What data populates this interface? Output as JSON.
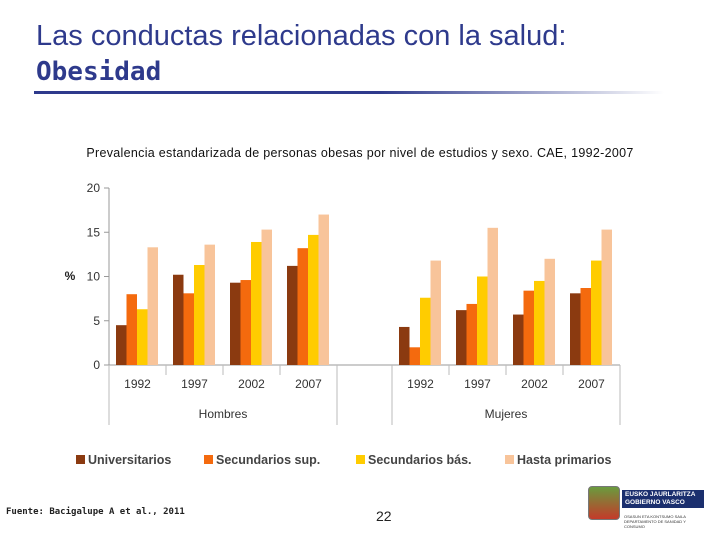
{
  "slide": {
    "title_line1": "Las conductas relacionadas con la salud:",
    "title_line2": "Obesidad",
    "source": "Fuente: Bacigalupe A et al., 2011",
    "page_number": "22",
    "logo": {
      "line1": "EUSKO JAURLARITZA",
      "line2": "GOBIERNO VASCO",
      "small1": "OSASUN ETA KONTSUMO SAILA",
      "small2": "DEPARTAMENTO DE SANIDAD Y CONSUMO"
    }
  },
  "colors": {
    "title": "#2e3a8c",
    "Universitarios": "#8b3a10",
    "Secundarios sup.": "#f46a0e",
    "Secundarios bás.": "#ffcc00",
    "Hasta primarios": "#f8c49a"
  },
  "chart_data": {
    "type": "bar",
    "title": "Prevalencia estandarizada de personas obesas por nivel de estudios y sexo. CAE, 1992-2007",
    "ylabel": "%",
    "ylim": [
      0,
      20
    ],
    "yticks": [
      0,
      5,
      10,
      15,
      20
    ],
    "grid": false,
    "legend_position": "bottom",
    "groups": [
      {
        "name": "Hombres",
        "categories": [
          "1992",
          "1997",
          "2002",
          "2007"
        ],
        "series": [
          {
            "name": "Universitarios",
            "values": [
              4.5,
              10.2,
              9.3,
              11.2
            ]
          },
          {
            "name": "Secundarios sup.",
            "values": [
              8.0,
              8.1,
              9.6,
              13.2
            ]
          },
          {
            "name": "Secundarios bás.",
            "values": [
              6.3,
              11.3,
              13.9,
              14.7
            ]
          },
          {
            "name": "Hasta primarios",
            "values": [
              13.3,
              13.6,
              15.3,
              17.0
            ]
          }
        ]
      },
      {
        "name": "Mujeres",
        "categories": [
          "1992",
          "1997",
          "2002",
          "2007"
        ],
        "series": [
          {
            "name": "Universitarios",
            "values": [
              4.3,
              6.2,
              5.7,
              8.1
            ]
          },
          {
            "name": "Secundarios sup.",
            "values": [
              2.0,
              6.9,
              8.4,
              8.7
            ]
          },
          {
            "name": "Secundarios bás.",
            "values": [
              7.6,
              10.0,
              9.5,
              11.8
            ]
          },
          {
            "name": "Hasta primarios",
            "values": [
              11.8,
              15.5,
              12.0,
              15.3
            ]
          }
        ]
      }
    ]
  }
}
